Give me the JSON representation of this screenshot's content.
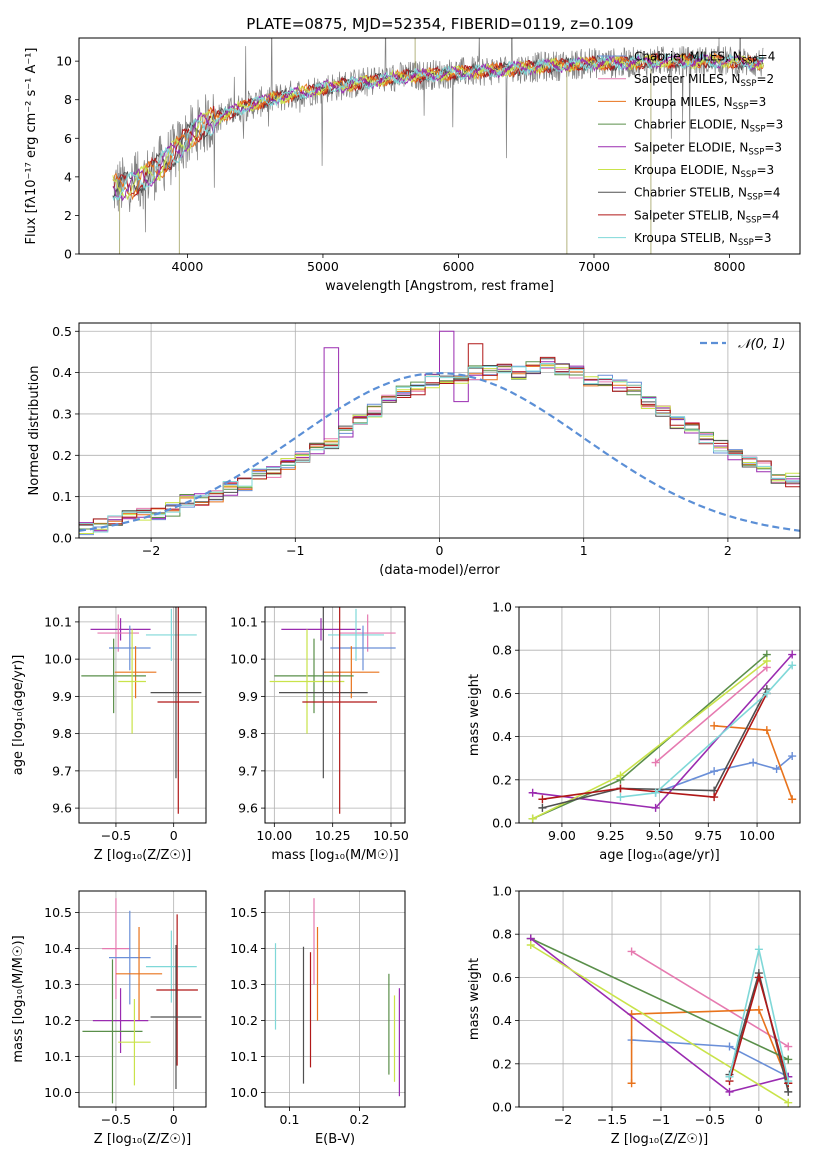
{
  "figure_title": "PLATE=0875, MJD=52354, FIBERID=0119, z=0.109",
  "colors": {
    "chabrier_miles": "#6a8fd8",
    "salpeter_miles": "#e67ab0",
    "kroupa_miles": "#e8731c",
    "chabrier_elodie": "#5a8f4a",
    "salpeter_elodie": "#9a2bb0",
    "kroupa_elodie": "#c9e34a",
    "chabrier_stelib": "#505050",
    "salpeter_stelib": "#b01818",
    "kroupa_stelib": "#7fd8d8",
    "normal": "#5b8fd6",
    "grid": "#b0b0b0"
  },
  "chart_data": [
    {
      "id": "spectrum",
      "type": "line",
      "xlabel": "wavelength [Angstrom, rest frame]",
      "ylabel": "Flux [fλ10⁻¹⁷ erg cm⁻² s⁻¹ A⁻¹]",
      "xlim": [
        3200,
        8520
      ],
      "ylim": [
        0,
        11.2
      ],
      "xticks": [
        4000,
        5000,
        6000,
        7000,
        8000
      ],
      "yticks": [
        0,
        2,
        4,
        6,
        8,
        10
      ],
      "grid": false,
      "legend_position": "right",
      "continuum": {
        "x": [
          3450,
          3600,
          3700,
          3800,
          3900,
          4000,
          4100,
          4200,
          4400,
          4600,
          4800,
          5000,
          5200,
          5400,
          5600,
          5800,
          6000,
          6200,
          6400,
          6600,
          6800,
          7000,
          7200,
          7400,
          7600,
          7800,
          8000,
          8200,
          8250
        ],
        "y": [
          3.4,
          3.6,
          4.0,
          4.6,
          5.2,
          6.0,
          6.6,
          7.0,
          7.6,
          8.0,
          8.3,
          8.6,
          8.8,
          9.0,
          9.2,
          9.3,
          9.4,
          9.5,
          9.6,
          9.7,
          9.8,
          9.9,
          9.9,
          10.0,
          10.0,
          10.0,
          10.0,
          9.9,
          9.9
        ]
      },
      "legend": [
        {
          "label": "Chabrier MILES, N",
          "sub": "SSP",
          "suffix": "=4",
          "color_key": "chabrier_miles"
        },
        {
          "label": "Salpeter MILES, N",
          "sub": "SSP",
          "suffix": "=2",
          "color_key": "salpeter_miles"
        },
        {
          "label": "Kroupa MILES, N",
          "sub": "SSP",
          "suffix": "=3",
          "color_key": "kroupa_miles"
        },
        {
          "label": "Chabrier ELODIE, N",
          "sub": "SSP",
          "suffix": "=3",
          "color_key": "chabrier_elodie"
        },
        {
          "label": "Salpeter ELODIE, N",
          "sub": "SSP",
          "suffix": "=3",
          "color_key": "salpeter_elodie"
        },
        {
          "label": "Kroupa ELODIE, N",
          "sub": "SSP",
          "suffix": "=3",
          "color_key": "kroupa_elodie"
        },
        {
          "label": "Chabrier STELIB, N",
          "sub": "SSP",
          "suffix": "=4",
          "color_key": "chabrier_stelib"
        },
        {
          "label": "Salpeter STELIB, N",
          "sub": "SSP",
          "suffix": "=4",
          "color_key": "salpeter_stelib"
        },
        {
          "label": "Kroupa STELIB, N",
          "sub": "SSP",
          "suffix": "=3",
          "color_key": "kroupa_stelib"
        }
      ]
    },
    {
      "id": "residuals",
      "type": "line",
      "xlabel": "(data-model)/error",
      "ylabel": "Normed distribution",
      "xlim": [
        -2.5,
        2.5
      ],
      "ylim": [
        0,
        0.52
      ],
      "xticks": [
        -2,
        -1,
        0,
        1,
        2
      ],
      "yticks": [
        0.0,
        0.1,
        0.2,
        0.3,
        0.4,
        0.5
      ],
      "grid": true,
      "legend": [
        {
          "label": "𝒩(0, 1)",
          "color_key": "normal"
        }
      ],
      "legend_position": "top-right",
      "bin_width": 0.1,
      "bin_start": -2.5,
      "base_hist": [
        0.02,
        0.03,
        0.04,
        0.05,
        0.06,
        0.06,
        0.07,
        0.09,
        0.09,
        0.1,
        0.12,
        0.13,
        0.15,
        0.16,
        0.18,
        0.2,
        0.22,
        0.23,
        0.26,
        0.28,
        0.31,
        0.33,
        0.35,
        0.36,
        0.38,
        0.38,
        0.39,
        0.4,
        0.4,
        0.41,
        0.4,
        0.41,
        0.42,
        0.41,
        0.4,
        0.38,
        0.38,
        0.37,
        0.36,
        0.33,
        0.31,
        0.28,
        0.27,
        0.24,
        0.22,
        0.2,
        0.18,
        0.17,
        0.15,
        0.14,
        0.12,
        0.11,
        0.1,
        0.09,
        0.08,
        0.07,
        0.06,
        0.05,
        0.04,
        0.03
      ]
    },
    {
      "id": "age_vs_Z",
      "type": "scatter",
      "xlabel": "Z [log₁₀(Z/Z☉)]",
      "ylabel": "age  [log₁₀(age/yr)]",
      "xlim": [
        -0.82,
        0.28
      ],
      "ylim": [
        9.56,
        10.14
      ],
      "xticks": [
        -0.5,
        0.0
      ],
      "yticks": [
        9.6,
        9.7,
        9.8,
        9.9,
        10.0,
        10.1
      ],
      "grid": true,
      "points": [
        {
          "color_key": "salpeter_elodie",
          "x": -0.46,
          "xerr": 0.26,
          "y": 10.08,
          "yerr": 0.03
        },
        {
          "color_key": "salpeter_miles",
          "x": -0.48,
          "xerr": 0.18,
          "y": 10.07,
          "yerr": 0.05
        },
        {
          "color_key": "kroupa_stelib",
          "x": -0.02,
          "xerr": 0.22,
          "y": 10.065,
          "yerr": 0.07
        },
        {
          "color_key": "chabrier_miles",
          "x": -0.38,
          "xerr": 0.18,
          "y": 10.03,
          "yerr": 0.06
        },
        {
          "color_key": "kroupa_miles",
          "x": -0.33,
          "xerr": 0.18,
          "y": 9.965,
          "yerr": 0.07
        },
        {
          "color_key": "chabrier_elodie",
          "x": -0.52,
          "xerr": 0.28,
          "y": 9.955,
          "yerr": 0.1
        },
        {
          "color_key": "kroupa_elodie",
          "x": -0.36,
          "xerr": 0.12,
          "y": 9.94,
          "yerr": 0.14
        },
        {
          "color_key": "chabrier_stelib",
          "x": 0.02,
          "xerr": 0.22,
          "y": 9.91,
          "yerr": 0.23
        },
        {
          "color_key": "salpeter_stelib",
          "x": 0.04,
          "xerr": 0.18,
          "y": 9.885,
          "yerr": 0.3
        }
      ]
    },
    {
      "id": "age_vs_mass",
      "type": "scatter",
      "xlabel": "mass [log₁₀(M/M☉)]",
      "ylabel": "",
      "xlim": [
        9.96,
        10.56
      ],
      "ylim": [
        9.56,
        10.14
      ],
      "xticks": [
        10.0,
        10.25,
        10.5
      ],
      "xtick_labels": [
        "10.00",
        "10.25",
        "10.50"
      ],
      "yticks": [
        9.6,
        9.7,
        9.8,
        9.9,
        10.0,
        10.1
      ],
      "grid": true,
      "points": [
        {
          "color_key": "salpeter_elodie",
          "x": 10.2,
          "xerr": 0.17,
          "y": 10.08,
          "yerr": 0.03
        },
        {
          "color_key": "salpeter_miles",
          "x": 10.4,
          "xerr": 0.12,
          "y": 10.07,
          "yerr": 0.05
        },
        {
          "color_key": "kroupa_stelib",
          "x": 10.35,
          "xerr": 0.12,
          "y": 10.065,
          "yerr": 0.07
        },
        {
          "color_key": "chabrier_miles",
          "x": 10.38,
          "xerr": 0.14,
          "y": 10.03,
          "yerr": 0.06
        },
        {
          "color_key": "kroupa_miles",
          "x": 10.33,
          "xerr": 0.12,
          "y": 9.965,
          "yerr": 0.07
        },
        {
          "color_key": "chabrier_elodie",
          "x": 10.17,
          "xerr": 0.17,
          "y": 9.955,
          "yerr": 0.1
        },
        {
          "color_key": "kroupa_elodie",
          "x": 10.14,
          "xerr": 0.16,
          "y": 9.94,
          "yerr": 0.14
        },
        {
          "color_key": "chabrier_stelib",
          "x": 10.21,
          "xerr": 0.19,
          "y": 9.91,
          "yerr": 0.23
        },
        {
          "color_key": "salpeter_stelib",
          "x": 10.28,
          "xerr": 0.16,
          "y": 9.885,
          "yerr": 0.3
        }
      ]
    },
    {
      "id": "weight_vs_age",
      "type": "line",
      "xlabel": "age  [log₁₀(age/yr)]",
      "ylabel": "mass weight",
      "xlim": [
        8.78,
        10.22
      ],
      "ylim": [
        0,
        1.0
      ],
      "xticks": [
        9.0,
        9.25,
        9.5,
        9.75,
        10.0
      ],
      "xtick_labels": [
        "9.00",
        "9.25",
        "9.50",
        "9.75",
        "10.00"
      ],
      "yticks": [
        0.0,
        0.2,
        0.4,
        0.6,
        0.8,
        1.0
      ],
      "grid": true,
      "series": [
        {
          "color_key": "chabrier_miles",
          "x": [
            9.48,
            9.78,
            9.98,
            10.1,
            10.18
          ],
          "y": [
            0.14,
            0.24,
            0.28,
            0.25,
            0.31
          ]
        },
        {
          "color_key": "salpeter_miles",
          "x": [
            9.48,
            10.05
          ],
          "y": [
            0.28,
            0.72
          ]
        },
        {
          "color_key": "kroupa_miles",
          "x": [
            9.78,
            10.05,
            10.18
          ],
          "y": [
            0.45,
            0.43,
            0.11
          ]
        },
        {
          "color_key": "chabrier_elodie",
          "x": [
            8.85,
            9.3,
            10.05
          ],
          "y": [
            0.02,
            0.2,
            0.78
          ]
        },
        {
          "color_key": "salpeter_elodie",
          "x": [
            8.85,
            9.48,
            10.18
          ],
          "y": [
            0.14,
            0.07,
            0.78
          ]
        },
        {
          "color_key": "kroupa_elodie",
          "x": [
            8.85,
            9.3,
            10.05
          ],
          "y": [
            0.02,
            0.22,
            0.75
          ]
        },
        {
          "color_key": "chabrier_stelib",
          "x": [
            8.9,
            9.3,
            9.78,
            10.05
          ],
          "y": [
            0.07,
            0.16,
            0.15,
            0.62
          ]
        },
        {
          "color_key": "salpeter_stelib",
          "x": [
            8.9,
            9.3,
            9.78,
            10.05
          ],
          "y": [
            0.11,
            0.16,
            0.12,
            0.6
          ]
        },
        {
          "color_key": "kroupa_stelib",
          "x": [
            9.3,
            9.48,
            10.05,
            10.18
          ],
          "y": [
            0.12,
            0.14,
            0.6,
            0.73
          ]
        }
      ]
    },
    {
      "id": "mass_vs_Z",
      "type": "scatter",
      "xlabel": "Z [log₁₀(Z/Z☉)]",
      "ylabel": "mass [log₁₀(M/M☉)]",
      "xlim": [
        -0.82,
        0.28
      ],
      "ylim": [
        9.96,
        10.56
      ],
      "xticks": [
        -0.5,
        0.0
      ],
      "yticks": [
        10.0,
        10.1,
        10.2,
        10.3,
        10.4,
        10.5
      ],
      "grid": true,
      "points": [
        {
          "color_key": "salpeter_miles",
          "x": -0.5,
          "xerr": 0.12,
          "y": 10.4,
          "yerr": 0.14
        },
        {
          "color_key": "chabrier_miles",
          "x": -0.38,
          "xerr": 0.18,
          "y": 10.375,
          "yerr": 0.13
        },
        {
          "color_key": "kroupa_stelib",
          "x": -0.02,
          "xerr": 0.22,
          "y": 10.35,
          "yerr": 0.1
        },
        {
          "color_key": "kroupa_miles",
          "x": -0.3,
          "xerr": 0.2,
          "y": 10.33,
          "yerr": 0.13
        },
        {
          "color_key": "salpeter_stelib",
          "x": 0.03,
          "xerr": 0.18,
          "y": 10.285,
          "yerr": 0.21
        },
        {
          "color_key": "chabrier_stelib",
          "x": 0.02,
          "xerr": 0.22,
          "y": 10.21,
          "yerr": 0.2
        },
        {
          "color_key": "salpeter_elodie",
          "x": -0.46,
          "xerr": 0.24,
          "y": 10.2,
          "yerr": 0.09
        },
        {
          "color_key": "chabrier_elodie",
          "x": -0.53,
          "xerr": 0.26,
          "y": 10.17,
          "yerr": 0.2
        },
        {
          "color_key": "kroupa_elodie",
          "x": -0.34,
          "xerr": 0.14,
          "y": 10.14,
          "yerr": 0.12
        }
      ]
    },
    {
      "id": "mass_vs_ebv",
      "type": "scatter",
      "xlabel": "E(B-V)",
      "ylabel": "",
      "xlim": [
        0.065,
        0.265
      ],
      "ylim": [
        9.96,
        10.56
      ],
      "xticks": [
        0.1,
        0.2
      ],
      "yticks": [
        10.0,
        10.1,
        10.2,
        10.3,
        10.4,
        10.5
      ],
      "grid": true,
      "points": [
        {
          "color_key": "kroupa_stelib",
          "x": 0.08,
          "xerr": 0,
          "y": 10.295,
          "yerr": 0.12
        },
        {
          "color_key": "chabrier_stelib",
          "x": 0.12,
          "xerr": 0,
          "y": 10.215,
          "yerr": 0.19
        },
        {
          "color_key": "salpeter_stelib",
          "x": 0.13,
          "xerr": 0,
          "y": 10.23,
          "yerr": 0.16
        },
        {
          "color_key": "salpeter_miles",
          "x": 0.135,
          "xerr": 0,
          "y": 10.42,
          "yerr": 0.12
        },
        {
          "color_key": "kroupa_miles",
          "x": 0.14,
          "xerr": 0,
          "y": 10.33,
          "yerr": 0.13
        },
        {
          "color_key": "chabrier_elodie",
          "x": 0.242,
          "xerr": 0,
          "y": 10.19,
          "yerr": 0.14
        },
        {
          "color_key": "kroupa_elodie",
          "x": 0.25,
          "xerr": 0,
          "y": 10.15,
          "yerr": 0.12
        },
        {
          "color_key": "salpeter_elodie",
          "x": 0.257,
          "xerr": 0,
          "y": 10.14,
          "yerr": 0.15
        }
      ]
    },
    {
      "id": "weight_vs_Z",
      "type": "line",
      "xlabel": "Z [log₁₀(Z/Z☉)]",
      "ylabel": "mass weight",
      "xlim": [
        -2.45,
        0.42
      ],
      "ylim": [
        0,
        1.0
      ],
      "xticks": [
        -2.0,
        -1.5,
        -1.0,
        -0.5,
        0.0
      ],
      "yticks": [
        0.0,
        0.2,
        0.4,
        0.6,
        0.8,
        1.0
      ],
      "grid": true,
      "series": [
        {
          "color_key": "chabrier_miles",
          "x": [
            -1.3,
            -0.3,
            0.3
          ],
          "y": [
            0.31,
            0.28,
            0.14
          ]
        },
        {
          "color_key": "salpeter_miles",
          "x": [
            -1.3,
            0.3
          ],
          "y": [
            0.72,
            0.28
          ]
        },
        {
          "color_key": "kroupa_miles",
          "x": [
            -1.3,
            -1.3,
            0.0,
            0.3
          ],
          "y": [
            0.11,
            0.43,
            0.45,
            0.11
          ]
        },
        {
          "color_key": "chabrier_elodie",
          "x": [
            -2.33,
            0.3
          ],
          "y": [
            0.78,
            0.22
          ]
        },
        {
          "color_key": "salpeter_elodie",
          "x": [
            -2.33,
            -0.3,
            0.3
          ],
          "y": [
            0.78,
            0.07,
            0.14
          ]
        },
        {
          "color_key": "kroupa_elodie",
          "x": [
            -2.33,
            0.3
          ],
          "y": [
            0.75,
            0.02
          ]
        },
        {
          "color_key": "chabrier_stelib",
          "x": [
            -0.3,
            0.0,
            0.3
          ],
          "y": [
            0.15,
            0.62,
            0.07
          ]
        },
        {
          "color_key": "salpeter_stelib",
          "x": [
            -0.3,
            0.0,
            0.3
          ],
          "y": [
            0.12,
            0.6,
            0.11
          ]
        },
        {
          "color_key": "kroupa_stelib",
          "x": [
            -0.3,
            0.0,
            0.3
          ],
          "y": [
            0.14,
            0.73,
            0.12
          ]
        }
      ]
    }
  ]
}
